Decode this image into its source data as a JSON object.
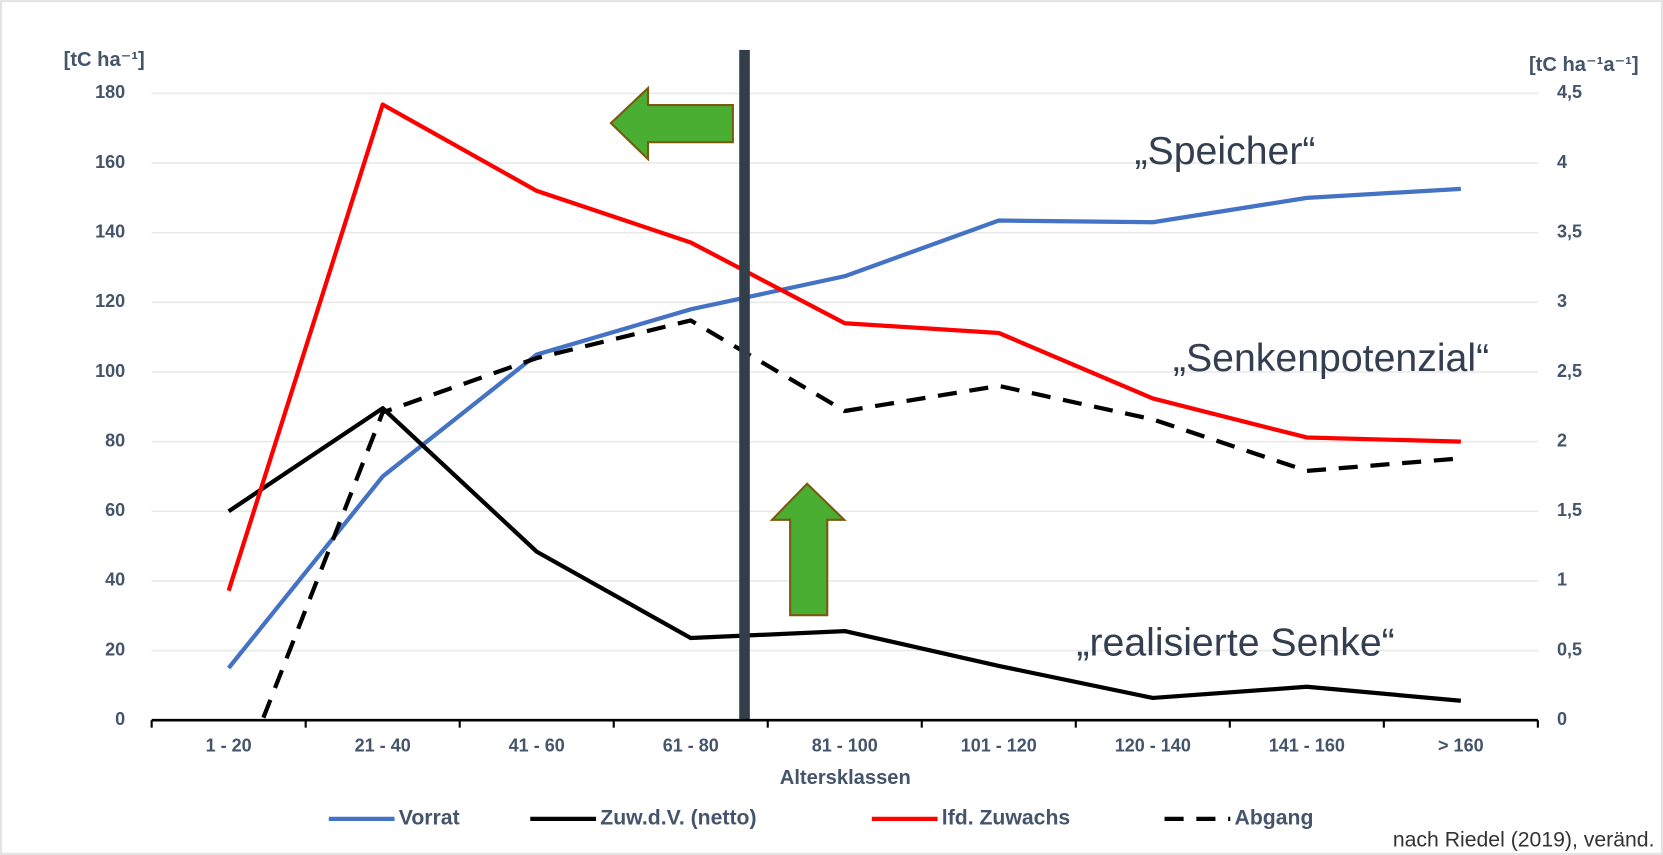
{
  "chart_data": {
    "type": "line",
    "categories": [
      "1 - 20",
      "21 - 40",
      "41 - 60",
      "61 - 80",
      "81 - 100",
      "101 - 120",
      "120 - 140",
      "141 - 160",
      "> 160"
    ],
    "xlabel": "Altersklassen",
    "ylabel": "[tC ha⁻¹]",
    "y2label": "[tC ha⁻¹a⁻¹]",
    "ylim": [
      0,
      180
    ],
    "yticks": [
      0,
      20,
      40,
      60,
      80,
      100,
      120,
      140,
      160,
      180
    ],
    "y2lim": [
      0,
      4.5
    ],
    "y2ticks": [
      0,
      {
        "value": 0.5,
        "label": "0,5"
      },
      1,
      {
        "value": 1.5,
        "label": "1,5"
      },
      2,
      {
        "value": 2.5,
        "label": "2,5"
      },
      3,
      {
        "value": 3.5,
        "label": "3,5"
      },
      4,
      {
        "value": 4.5,
        "label": "4,5"
      }
    ],
    "grid": true,
    "legend": "bottom",
    "series": [
      {
        "name": "Vorrat",
        "color": "#4472c4",
        "line_style": "solid",
        "values": [
          15,
          70,
          105,
          118,
          127.5,
          143.5,
          143,
          150,
          152.6
        ]
      },
      {
        "name": "Zuw.d.V. (netto)",
        "color": "#000000",
        "line_style": "solid",
        "axis": "y2",
        "values": [
          1.5,
          2.24,
          1.21,
          0.59,
          0.64,
          0.39,
          0.16,
          0.24,
          0.14
        ]
      },
      {
        "name": "lfd. Zuwachs",
        "color": "#ff0000",
        "line_style": "solid",
        "axis": "y2",
        "values": [
          0.93,
          4.42,
          3.8,
          3.43,
          2.85,
          2.78,
          2.31,
          2.03,
          2.0
        ]
      },
      {
        "name": "Abgang",
        "color": "#000000",
        "line_style": "dashed",
        "axis": "y2",
        "values": [
          -0.62,
          2.21,
          2.6,
          2.87,
          2.22,
          2.4,
          2.16,
          1.79,
          1.88
        ]
      }
    ],
    "annotations": [
      "„Speicher“",
      "„Senkenpotenzial“",
      "„realisierte Senke“"
    ],
    "source": "nach Riedel (2019), veränd."
  }
}
